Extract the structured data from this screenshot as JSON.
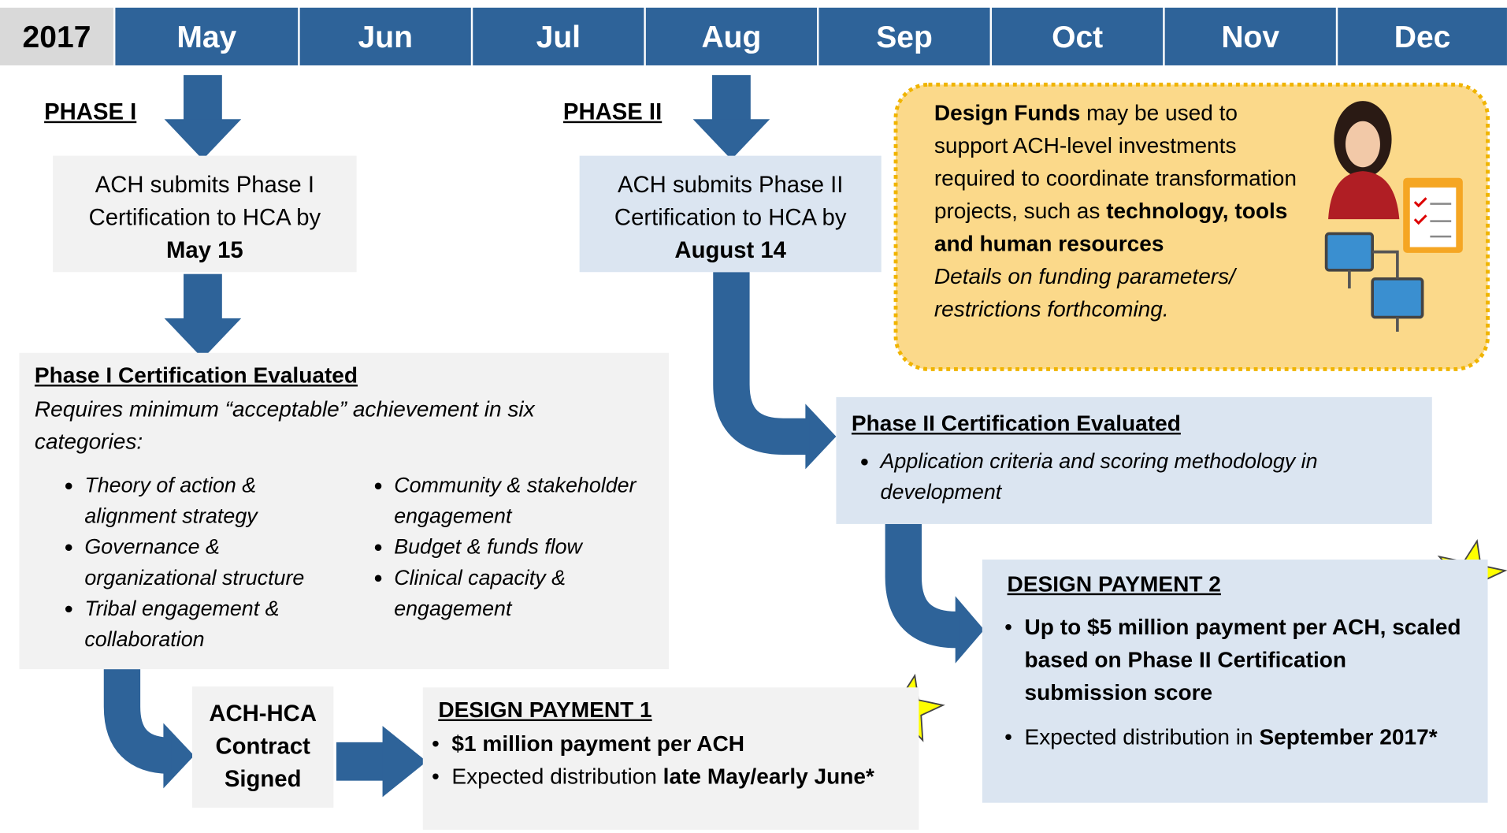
{
  "header": {
    "year": "2017",
    "months": [
      "May",
      "Jun",
      "Jul",
      "Aug",
      "Sep",
      "Oct",
      "Nov",
      "Dec"
    ]
  },
  "phase1": {
    "label": "PHASE I",
    "submit": {
      "text": "ACH submits Phase I Certification to HCA by",
      "date": "May 15"
    },
    "evaluated": {
      "title": "Phase I Certification Evaluated",
      "text": "Requires minimum “acceptable” achievement in six categories:",
      "bullets_left": [
        "Theory of action & alignment strategy",
        "Governance & organizational structure",
        "Tribal engagement & collaboration"
      ],
      "bullets_right": [
        "Community & stakeholder engagement",
        "Budget & funds flow",
        "Clinical capacity & engagement"
      ]
    }
  },
  "phase2": {
    "label": "PHASE II",
    "submit": {
      "text": "ACH submits Phase II Certification to HCA by",
      "date": "August 14"
    },
    "evaluated": {
      "title": "Phase II Certification Evaluated",
      "bullets": [
        "Application criteria and scoring methodology in development"
      ]
    }
  },
  "design_funds": {
    "bold1": "Design Funds",
    "text1": "may be used to support ACH-level investments required to coordinate transformation projects, such as",
    "bold2": "technology, tools and human resources",
    "note": "Details on funding parameters/ restrictions forthcoming."
  },
  "contract": "ACH-HCA Contract Signed",
  "payment1": {
    "title": "DESIGN PAYMENT 1",
    "bullet1": "$1 million payment per ACH",
    "bullet2_text": "Expected distribution",
    "bullet2_bold": "late May/early June*"
  },
  "payment2": {
    "title": "DESIGN PAYMENT 2",
    "bullet1": "Up to $5 million payment per ACH, scaled based on Phase II Certification submission score",
    "bullet2_text": "Expected distribution in",
    "bullet2_bold": "September 2017*"
  }
}
